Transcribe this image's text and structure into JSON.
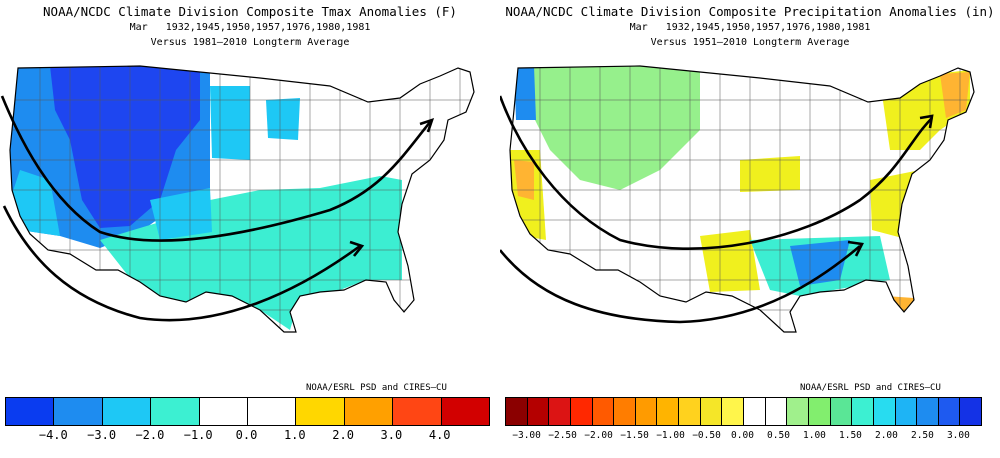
{
  "left": {
    "title": "NOAA/NCDC Climate Division Composite Tmax Anomalies (F)",
    "subtitle": "Mar   1932,1945,1950,1957,1976,1980,1981",
    "baseline": "Versus 1981–2010 Longterm Average",
    "credit": "NOAA/ESRL PSD and CIRES–CU",
    "colorbar": {
      "colors": [
        "#0a3cf0",
        "#1e8cf0",
        "#1ec8f5",
        "#3cf0d2",
        "#ffffff",
        "#ffffff",
        "#ffd700",
        "#ffa000",
        "#ff4614",
        "#d20000"
      ],
      "labels": [
        "−4.0",
        "−3.0",
        "−2.0",
        "−1.0",
        "0.0",
        "1.0",
        "2.0",
        "3.0",
        "4.0"
      ]
    },
    "region_colors": {
      "deep": "#1e46f0",
      "mid": "#1e8cf0",
      "light": "#1ec8f5",
      "teal": "#3ceed2",
      "white": "#ffffff"
    }
  },
  "right": {
    "title": "NOAA/NCDC Climate Division Composite Precipitation Anomalies (in)",
    "subtitle": "Mar   1932,1945,1950,1957,1976,1980,1981",
    "baseline": "Versus 1951–2010 Longterm Average",
    "credit": "NOAA/ESRL PSD and CIRES–CU",
    "colorbar": {
      "colors": [
        "#8b0000",
        "#b40000",
        "#dc1414",
        "#ff2800",
        "#ff5a00",
        "#ff7d00",
        "#ff9b00",
        "#ffb400",
        "#ffd21e",
        "#f5e628",
        "#fff54b",
        "#ffffff",
        "#ffffff",
        "#a0f08c",
        "#82ee6e",
        "#5ae696",
        "#3cf0d2",
        "#28dcf0",
        "#1eb4f5",
        "#1e8cf0",
        "#1e5af0",
        "#1432e6"
      ],
      "labels": [
        "−3.00",
        "−2.50",
        "−2.00",
        "−1.50",
        "−1.00",
        "−0.50",
        "0.00",
        "0.50",
        "1.00",
        "1.50",
        "2.00",
        "2.50",
        "3.00"
      ]
    },
    "region_colors": {
      "green": "#96f08c",
      "yellow": "#f0f01e",
      "orange": "#ffb432",
      "teal": "#3ceed2",
      "blue": "#1e8cf0",
      "white": "#ffffff"
    }
  }
}
